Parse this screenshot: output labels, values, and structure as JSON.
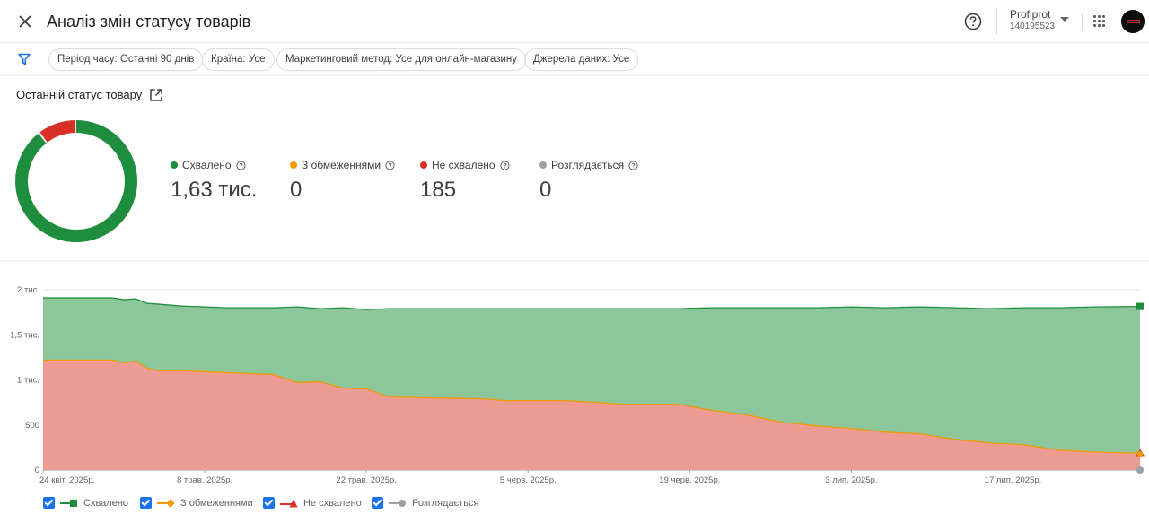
{
  "header": {
    "title": "Аналіз змін статусу товарів",
    "close_icon": "close-icon",
    "help_icon": "help-icon",
    "account": {
      "name": "Profiprot",
      "id": "140195523"
    },
    "apps_icon": "apps-grid-icon"
  },
  "filters": {
    "icon": "filter-icon",
    "chips": [
      "Період часу: Останні 90 днів",
      "Країна: Усе",
      "Маркетинговий метод: Усе для онлайн-магазину",
      "Джерела даних: Усе"
    ]
  },
  "status": {
    "title": "Останній статус товару",
    "donut": {
      "approved_fraction": 0.898,
      "limited_fraction": 0.0,
      "disapproved_fraction": 0.102,
      "pending_fraction": 0.0
    },
    "stats": [
      {
        "label": "Схвалено",
        "value": "1,63 тис.",
        "color": "#1e8e3e"
      },
      {
        "label": "З обмеженнями",
        "value": "0",
        "color": "#f29900"
      },
      {
        "label": "Не схвалено",
        "value": "185",
        "color": "#d93025"
      },
      {
        "label": "Розглядається",
        "value": "0",
        "color": "#9aa0a6"
      }
    ]
  },
  "colors": {
    "approved_line": "#1e8e3e",
    "approved_fill": "#8cc79b",
    "disapproved_line": "#f29900",
    "disapproved_fill": "#ec9b93",
    "limited": "#f29900",
    "pending": "#9aa0a6",
    "accent": "#1a73e8"
  },
  "chart_data": {
    "type": "area",
    "stacked": true,
    "ylim": [
      0,
      2000
    ],
    "y_ticks": [
      0,
      500,
      1000,
      1500,
      2000
    ],
    "y_tick_labels": [
      "0",
      "500",
      "1 тис.",
      "1,5 тис.",
      "2 тис."
    ],
    "x_range": [
      "2025-04-24",
      "2025-07-28"
    ],
    "x_ticks": [
      {
        "date": "2025-04-24",
        "label": "24 квіт. 2025р."
      },
      {
        "date": "2025-05-08",
        "label": "8 трав. 2025р."
      },
      {
        "date": "2025-05-22",
        "label": "22 трав. 2025р."
      },
      {
        "date": "2025-06-05",
        "label": "5 черв. 2025р."
      },
      {
        "date": "2025-06-19",
        "label": "19 черв. 2025р."
      },
      {
        "date": "2025-07-03",
        "label": "3 лип. 2025р."
      },
      {
        "date": "2025-07-17",
        "label": "17 лип. 2025р."
      }
    ],
    "series": [
      {
        "name": "Схвалено",
        "key": "approved",
        "points": [
          [
            "2025-04-24",
            690
          ],
          [
            "2025-04-30",
            690
          ],
          [
            "2025-05-01",
            700
          ],
          [
            "2025-05-02",
            690
          ],
          [
            "2025-05-03",
            720
          ],
          [
            "2025-05-04",
            740
          ],
          [
            "2025-05-06",
            720
          ],
          [
            "2025-05-10",
            720
          ],
          [
            "2025-05-14",
            740
          ],
          [
            "2025-05-16",
            840
          ],
          [
            "2025-05-18",
            810
          ],
          [
            "2025-05-20",
            890
          ],
          [
            "2025-05-22",
            880
          ],
          [
            "2025-05-24",
            980
          ],
          [
            "2025-05-28",
            990
          ],
          [
            "2025-06-01",
            1000
          ],
          [
            "2025-06-03",
            1020
          ],
          [
            "2025-06-08",
            1020
          ],
          [
            "2025-06-11",
            1040
          ],
          [
            "2025-06-13",
            1060
          ],
          [
            "2025-06-18",
            1060
          ],
          [
            "2025-06-21",
            1140
          ],
          [
            "2025-06-24",
            1190
          ],
          [
            "2025-06-27",
            1270
          ],
          [
            "2025-06-30",
            1310
          ],
          [
            "2025-07-03",
            1350
          ],
          [
            "2025-07-06",
            1380
          ],
          [
            "2025-07-09",
            1410
          ],
          [
            "2025-07-12",
            1460
          ],
          [
            "2025-07-15",
            1490
          ],
          [
            "2025-07-18",
            1520
          ],
          [
            "2025-07-21",
            1580
          ],
          [
            "2025-07-24",
            1610
          ],
          [
            "2025-07-28",
            1630
          ]
        ]
      },
      {
        "name": "З обмеженнями",
        "key": "limited",
        "points": [
          [
            "2025-04-24",
            0
          ],
          [
            "2025-07-28",
            0
          ]
        ]
      },
      {
        "name": "Не схвалено",
        "key": "disapproved",
        "points": [
          [
            "2025-04-24",
            1220
          ],
          [
            "2025-04-30",
            1220
          ],
          [
            "2025-05-01",
            1190
          ],
          [
            "2025-05-02",
            1210
          ],
          [
            "2025-05-03",
            1130
          ],
          [
            "2025-05-04",
            1100
          ],
          [
            "2025-05-06",
            1100
          ],
          [
            "2025-05-10",
            1080
          ],
          [
            "2025-05-14",
            1060
          ],
          [
            "2025-05-16",
            970
          ],
          [
            "2025-05-18",
            980
          ],
          [
            "2025-05-20",
            910
          ],
          [
            "2025-05-22",
            900
          ],
          [
            "2025-05-24",
            810
          ],
          [
            "2025-05-28",
            800
          ],
          [
            "2025-06-01",
            790
          ],
          [
            "2025-06-03",
            770
          ],
          [
            "2025-06-08",
            770
          ],
          [
            "2025-06-11",
            750
          ],
          [
            "2025-06-13",
            730
          ],
          [
            "2025-06-18",
            730
          ],
          [
            "2025-06-21",
            660
          ],
          [
            "2025-06-24",
            610
          ],
          [
            "2025-06-27",
            530
          ],
          [
            "2025-06-30",
            490
          ],
          [
            "2025-07-03",
            460
          ],
          [
            "2025-07-06",
            420
          ],
          [
            "2025-07-09",
            400
          ],
          [
            "2025-07-12",
            340
          ],
          [
            "2025-07-15",
            300
          ],
          [
            "2025-07-18",
            280
          ],
          [
            "2025-07-21",
            220
          ],
          [
            "2025-07-24",
            200
          ],
          [
            "2025-07-28",
            185
          ]
        ]
      },
      {
        "name": "Розглядається",
        "key": "pending",
        "points": [
          [
            "2025-04-24",
            0
          ],
          [
            "2025-07-28",
            0
          ]
        ]
      }
    ],
    "grid": true,
    "legend_position": "bottom-left"
  }
}
